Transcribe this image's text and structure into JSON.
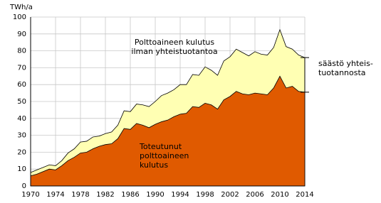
{
  "chart_data": {
    "type": "area",
    "unit_label": "TWh/a",
    "x": [
      1970,
      1971,
      1972,
      1973,
      1974,
      1975,
      1976,
      1977,
      1978,
      1979,
      1980,
      1981,
      1982,
      1983,
      1984,
      1985,
      1986,
      1987,
      1988,
      1989,
      1990,
      1991,
      1992,
      1993,
      1994,
      1995,
      1996,
      1997,
      1998,
      1999,
      2000,
      2001,
      2002,
      2003,
      2004,
      2005,
      2006,
      2007,
      2008,
      2009,
      2010,
      2011,
      2012,
      2013,
      2014
    ],
    "series": [
      {
        "name": [
          "Polttoaineen kulutus",
          "ilman yhteistuotantoa"
        ],
        "color": "#ffffb3",
        "values": [
          8,
          9.5,
          11,
          12.5,
          12,
          15,
          19.5,
          22,
          26,
          26.5,
          29,
          29.5,
          31,
          32,
          36,
          44.5,
          44,
          48.5,
          48,
          47,
          50,
          53.5,
          55,
          57,
          60,
          60,
          66,
          65.5,
          70.5,
          68.5,
          65.5,
          74,
          76.5,
          81,
          79,
          77,
          79.5,
          78,
          77.5,
          82,
          92.5,
          82.5,
          81,
          77.5,
          76
        ]
      },
      {
        "name": [
          "Toteutunut",
          "polttoaineen",
          "kulutus"
        ],
        "color": "#e05a00",
        "values": [
          6,
          7,
          8.5,
          10,
          9.5,
          12,
          15,
          17,
          19.5,
          20,
          22,
          23.5,
          24.5,
          25,
          28,
          34,
          33.5,
          37,
          36,
          34.5,
          36.5,
          38,
          39,
          41,
          42.5,
          43,
          47,
          46.5,
          49,
          48,
          45.5,
          51,
          53,
          56,
          54.5,
          54,
          55,
          54.5,
          54,
          58,
          65,
          58,
          59,
          56,
          55.5
        ]
      }
    ],
    "annotation": [
      "säästö yhteis-",
      "tuotannosta"
    ],
    "xlim": [
      1970,
      2014
    ],
    "xticks": [
      1970,
      1974,
      1978,
      1982,
      1986,
      1990,
      1994,
      1998,
      2002,
      2006,
      2010,
      2014
    ],
    "ylim": [
      0,
      100
    ],
    "yticks": [
      0,
      10,
      20,
      30,
      40,
      50,
      60,
      70,
      80,
      90,
      100
    ],
    "grid": true
  }
}
